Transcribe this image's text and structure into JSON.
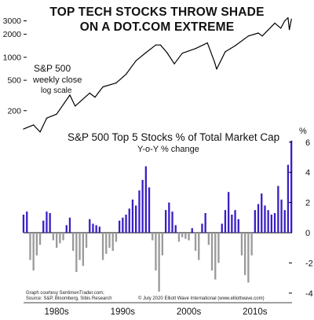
{
  "title_line1": "TOP TECH STOCKS THROW SHADE",
  "title_line2": "ON A DOT.COM EXTREME",
  "price_label": {
    "line1": "S&P 500",
    "line2": "weekly close",
    "line3": "log scale"
  },
  "bar_label": {
    "line1": "S&P 500 Top 5 Stocks % of Total Market Cap",
    "line2": "Y-o-Y % change"
  },
  "left_axis_ticks": [
    "3000",
    "2000",
    "1000",
    "500",
    "200"
  ],
  "right_axis_unit": "%",
  "right_axis_ticks": [
    "6",
    "4",
    "2",
    "0",
    "-2",
    "-4"
  ],
  "x_axis_labels": [
    "1980s",
    "1990s",
    "2000s",
    "2010s"
  ],
  "credit_left": {
    "line1": "Graph courtesy SentimenTrader.com;",
    "line2": "Source: S&P, Bloomberg, Sibis Research"
  },
  "credit_right": "© July 2020 Elliott Wave International (www.elliottwave.com)",
  "colors": {
    "positive_bars": "#3a1fc4",
    "negative_bars": "#9a9a9a",
    "line": "#000000"
  },
  "chart_data": [
    {
      "type": "line",
      "title": "S&P 500",
      "ylabel": "weekly close",
      "log_scale": true,
      "x": [
        1980.0,
        1981.5,
        1982.5,
        1983.5,
        1985.0,
        1987.0,
        1987.8,
        1988.5,
        1990.0,
        1990.8,
        1992.0,
        1994.0,
        1995.5,
        1997.0,
        1998.5,
        2000.0,
        2000.7,
        2001.7,
        2002.8,
        2004.0,
        2006.0,
        2007.8,
        2008.9,
        2009.2,
        2010.5,
        2012.0,
        2014.0,
        2015.5,
        2016.1,
        2018.0,
        2018.9,
        2019.5,
        2020.0,
        2020.2,
        2020.5
      ],
      "y": [
        115,
        130,
        105,
        160,
        180,
        320,
        230,
        260,
        340,
        300,
        410,
        460,
        600,
        900,
        1150,
        1450,
        1450,
        1150,
        820,
        1130,
        1300,
        1540,
        860,
        700,
        1180,
        1420,
        1900,
        2080,
        1900,
        2800,
        2400,
        3000,
        3300,
        2300,
        3150
      ],
      "ylim": [
        100,
        3500
      ]
    },
    {
      "type": "bar",
      "title": "S&P 500 Top 5 Stocks % of Total Market Cap",
      "ylabel": "Y-o-Y % change",
      "ylim": [
        -4.5,
        6.5
      ],
      "x": [
        1980.0,
        1980.5,
        1981.0,
        1981.5,
        1982.0,
        1982.5,
        1983.0,
        1983.5,
        1984.0,
        1984.5,
        1985.0,
        1985.5,
        1986.0,
        1986.5,
        1987.0,
        1987.5,
        1988.0,
        1988.5,
        1989.0,
        1989.5,
        1990.0,
        1990.5,
        1991.0,
        1991.5,
        1992.0,
        1992.5,
        1993.0,
        1993.5,
        1994.0,
        1994.5,
        1995.0,
        1995.5,
        1996.0,
        1996.5,
        1997.0,
        1997.5,
        1998.0,
        1998.5,
        1999.0,
        1999.5,
        2000.0,
        2000.5,
        2001.0,
        2001.5,
        2002.0,
        2002.5,
        2003.0,
        2003.5,
        2004.0,
        2004.5,
        2005.0,
        2005.5,
        2006.0,
        2006.5,
        2007.0,
        2007.5,
        2008.0,
        2008.5,
        2009.0,
        2009.5,
        2010.0,
        2010.5,
        2011.0,
        2011.5,
        2012.0,
        2012.5,
        2013.0,
        2013.5,
        2014.0,
        2014.5,
        2015.0,
        2015.5,
        2016.0,
        2016.5,
        2017.0,
        2017.5,
        2018.0,
        2018.5,
        2019.0,
        2019.5,
        2020.0,
        2020.5
      ],
      "values": [
        1.2,
        1.4,
        -1.8,
        -2.5,
        -1.5,
        -0.8,
        0.8,
        1.4,
        1.3,
        -0.5,
        -1.0,
        -0.7,
        -0.5,
        0.5,
        1.0,
        -1.2,
        -2.6,
        -1.8,
        -2.2,
        -1.0,
        0.9,
        0.6,
        0.5,
        0.4,
        -1.8,
        -1.4,
        -1.0,
        -1.2,
        -0.6,
        0.8,
        1.0,
        1.2,
        1.6,
        2.2,
        1.8,
        2.8,
        3.5,
        4.4,
        3.0,
        -0.5,
        -2.5,
        -3.9,
        -1.5,
        1.5,
        2.0,
        1.4,
        0.5,
        -0.6,
        -0.3,
        -0.4,
        -0.5,
        0.3,
        -1.2,
        -1.8,
        0.6,
        1.3,
        -0.8,
        -2.5,
        -3.1,
        -2.0,
        0.6,
        1.5,
        2.7,
        1.2,
        1.5,
        0.9,
        -1.5,
        -2.8,
        -3.3,
        -1.5,
        1.5,
        1.9,
        2.6,
        1.8,
        1.5,
        1.2,
        1.3,
        3.1,
        2.2,
        1.5,
        4.5,
        6.1
      ]
    }
  ]
}
